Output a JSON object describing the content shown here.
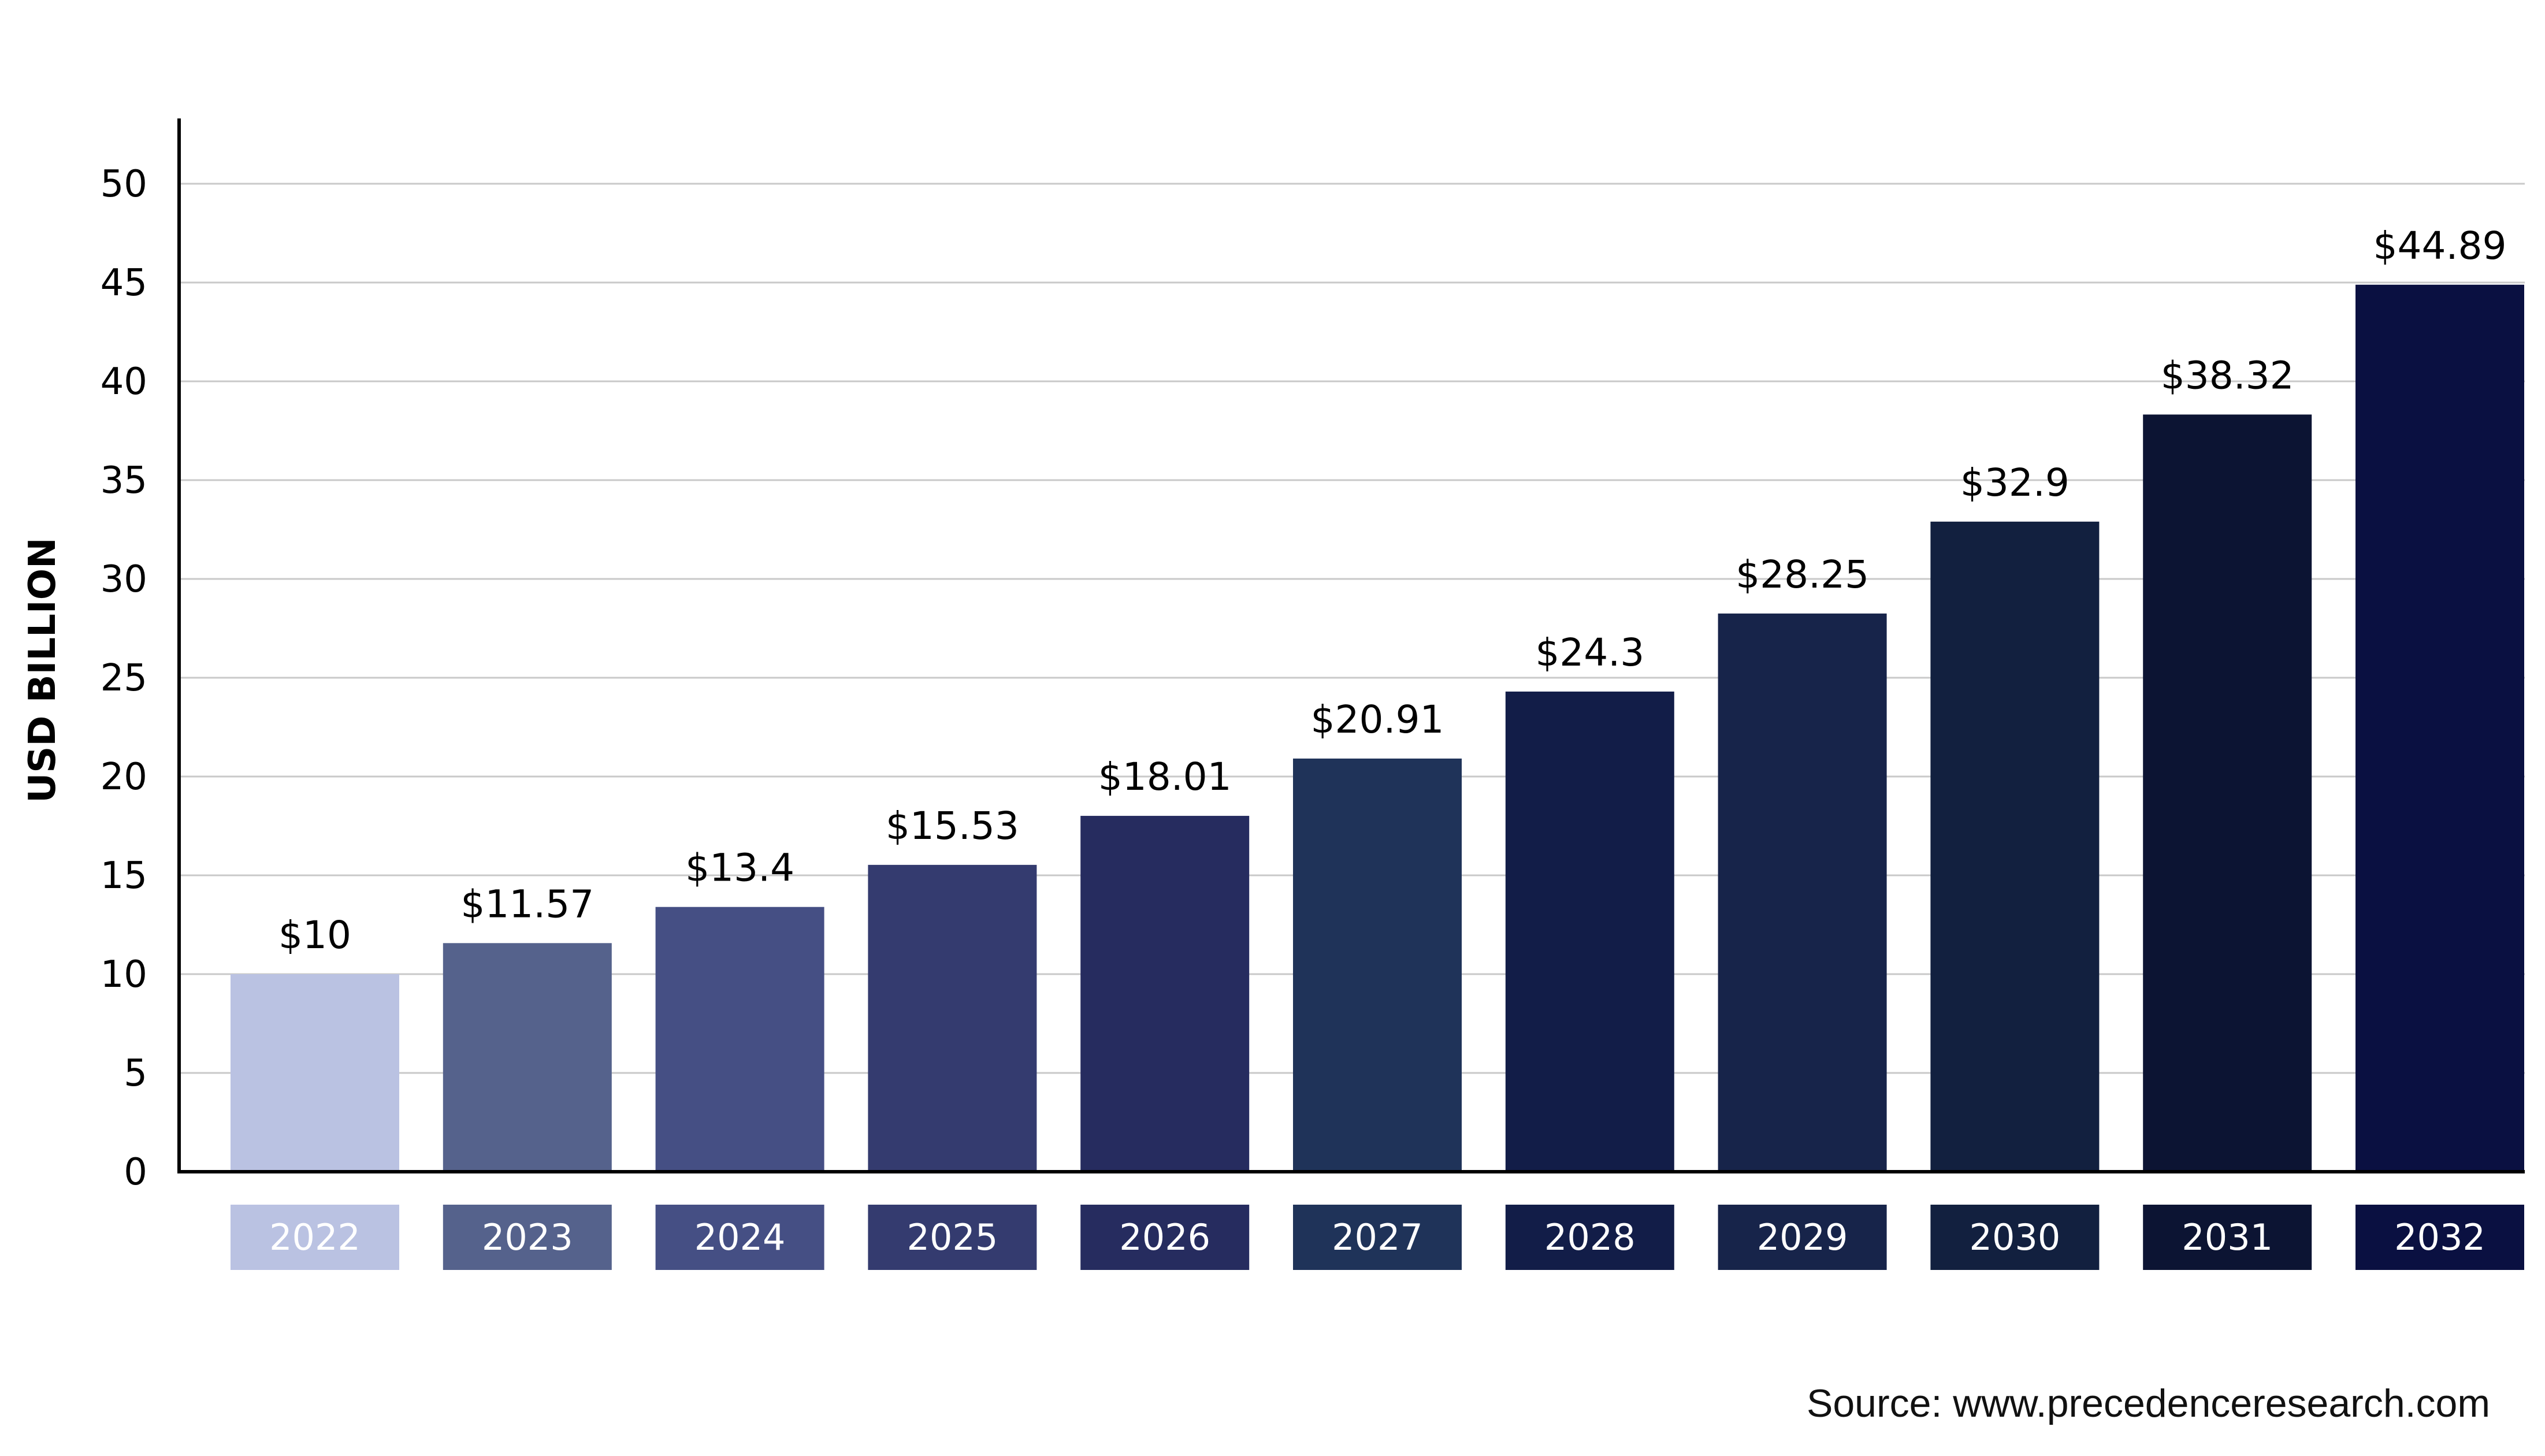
{
  "chart_data": {
    "type": "bar",
    "categories": [
      "2022",
      "2023",
      "2024",
      "2025",
      "2026",
      "2027",
      "2028",
      "2029",
      "2030",
      "2031",
      "2032"
    ],
    "values": [
      10,
      11.57,
      13.4,
      15.53,
      18.01,
      20.91,
      24.3,
      28.25,
      32.9,
      38.32,
      44.89
    ],
    "value_labels": [
      "$10",
      "$11.57",
      "$13.4",
      "$15.53",
      "$18.01",
      "$20.91",
      "$24.3",
      "$28.25",
      "$32.9",
      "$38.32",
      "$44.89"
    ],
    "title": "",
    "xlabel": "",
    "ylabel": "USD BILLION",
    "ylim": [
      0,
      50
    ],
    "yticks": [
      0,
      5,
      10,
      15,
      20,
      25,
      30,
      35,
      40,
      45,
      50
    ],
    "grid": true,
    "legend": "none",
    "bar_colors": [
      "#bac2e2",
      "#55628c",
      "#454f84",
      "#343b6f",
      "#262c5f",
      "#1f3359",
      "#121d48",
      "#17244a",
      "#12203f",
      "#0c1433",
      "#0a1041"
    ],
    "category_label_boxes": true
  },
  "source_text": "Source: www.precedenceresearch.com"
}
